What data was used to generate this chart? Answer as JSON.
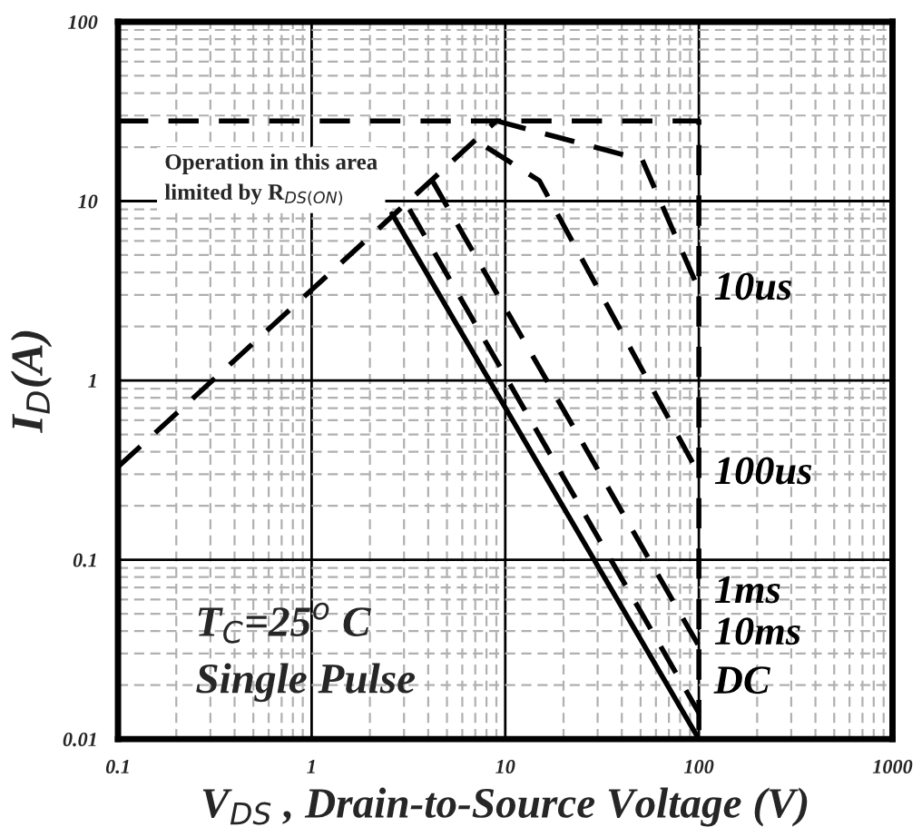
{
  "chart_data": {
    "type": "line",
    "xlabel": "V$_{DS}$ , Drain-to-Source Voltage (V)",
    "ylabel": "I$_{D}$(A)",
    "log": "xy",
    "xlim": [
      0.1,
      1000
    ],
    "xticks": [
      0.1,
      1,
      10,
      100,
      1000
    ],
    "ylim": [
      0.01,
      100
    ],
    "yticks": [
      0.01,
      0.1,
      1,
      10,
      100
    ],
    "grid": true,
    "legend": false,
    "marker": "none",
    "series": [
      {
        "color": "#000000",
        "line_style": "dashed",
        "x": [
          0.1,
          100,
          100
        ],
        "values": [
          28,
          28,
          0.01
        ]
      },
      {
        "color": "#000000",
        "line_style": "dashed",
        "x": [
          0.1,
          1,
          9
        ],
        "values": [
          0.33,
          3.2,
          28
        ]
      },
      {
        "name": "10us",
        "color": "#000000",
        "line_style": "dashed",
        "x": [
          9,
          51,
          100
        ],
        "values": [
          28,
          17,
          3.2
        ]
      },
      {
        "name": "100us",
        "color": "#000000",
        "line_style": "dashed",
        "x": [
          8,
          15,
          100
        ],
        "values": [
          20,
          13,
          0.3
        ]
      },
      {
        "name": "1ms",
        "color": "#000000",
        "line_style": "dashed",
        "x": [
          4.2,
          100
        ],
        "values": [
          13,
          0.033
        ]
      },
      {
        "name": "10ms",
        "color": "#000000",
        "line_style": "dashed",
        "x": [
          3.2,
          100
        ],
        "values": [
          9,
          0.014
        ]
      },
      {
        "name": "DC",
        "color": "#000000",
        "line_style": "solid",
        "x": [
          2.6,
          100
        ],
        "values": [
          8.5,
          0.01
        ]
      }
    ],
    "annotations": [
      "Operation in this area\nlimited by R$_{DS(ON)}$",
      "T$_{C}$=25$^{o}$ C\nSingle Pulse"
    ]
  }
}
